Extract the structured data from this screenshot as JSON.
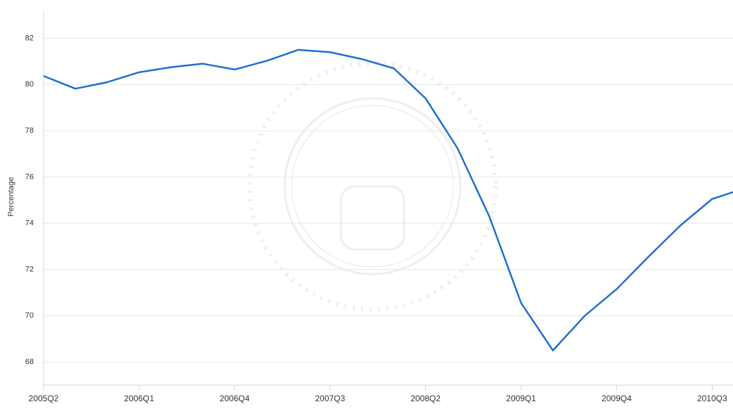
{
  "chart_data": {
    "type": "line",
    "y_label": "Percentage",
    "categories": [
      "2005Q2",
      null,
      null,
      "2006Q1",
      null,
      null,
      "2006Q4",
      null,
      null,
      "2007Q3",
      null,
      null,
      "2008Q2",
      null,
      null,
      "2009Q1",
      null,
      null,
      "2009Q4",
      null,
      null,
      "2010Q3",
      null
    ],
    "values": [
      80.37,
      79.82,
      80.1,
      80.53,
      80.75,
      80.9,
      80.65,
      81.02,
      81.5,
      81.4,
      81.1,
      80.7,
      79.4,
      77.25,
      74.3,
      70.55,
      68.5,
      70.0,
      71.15,
      72.55,
      73.9,
      75.05,
      75.5
    ],
    "color": "#1f6fd6",
    "ylim": [
      67,
      83.2
    ],
    "yticks": [
      68,
      70,
      72,
      74,
      76,
      78,
      80,
      82
    ],
    "grid": true
  }
}
